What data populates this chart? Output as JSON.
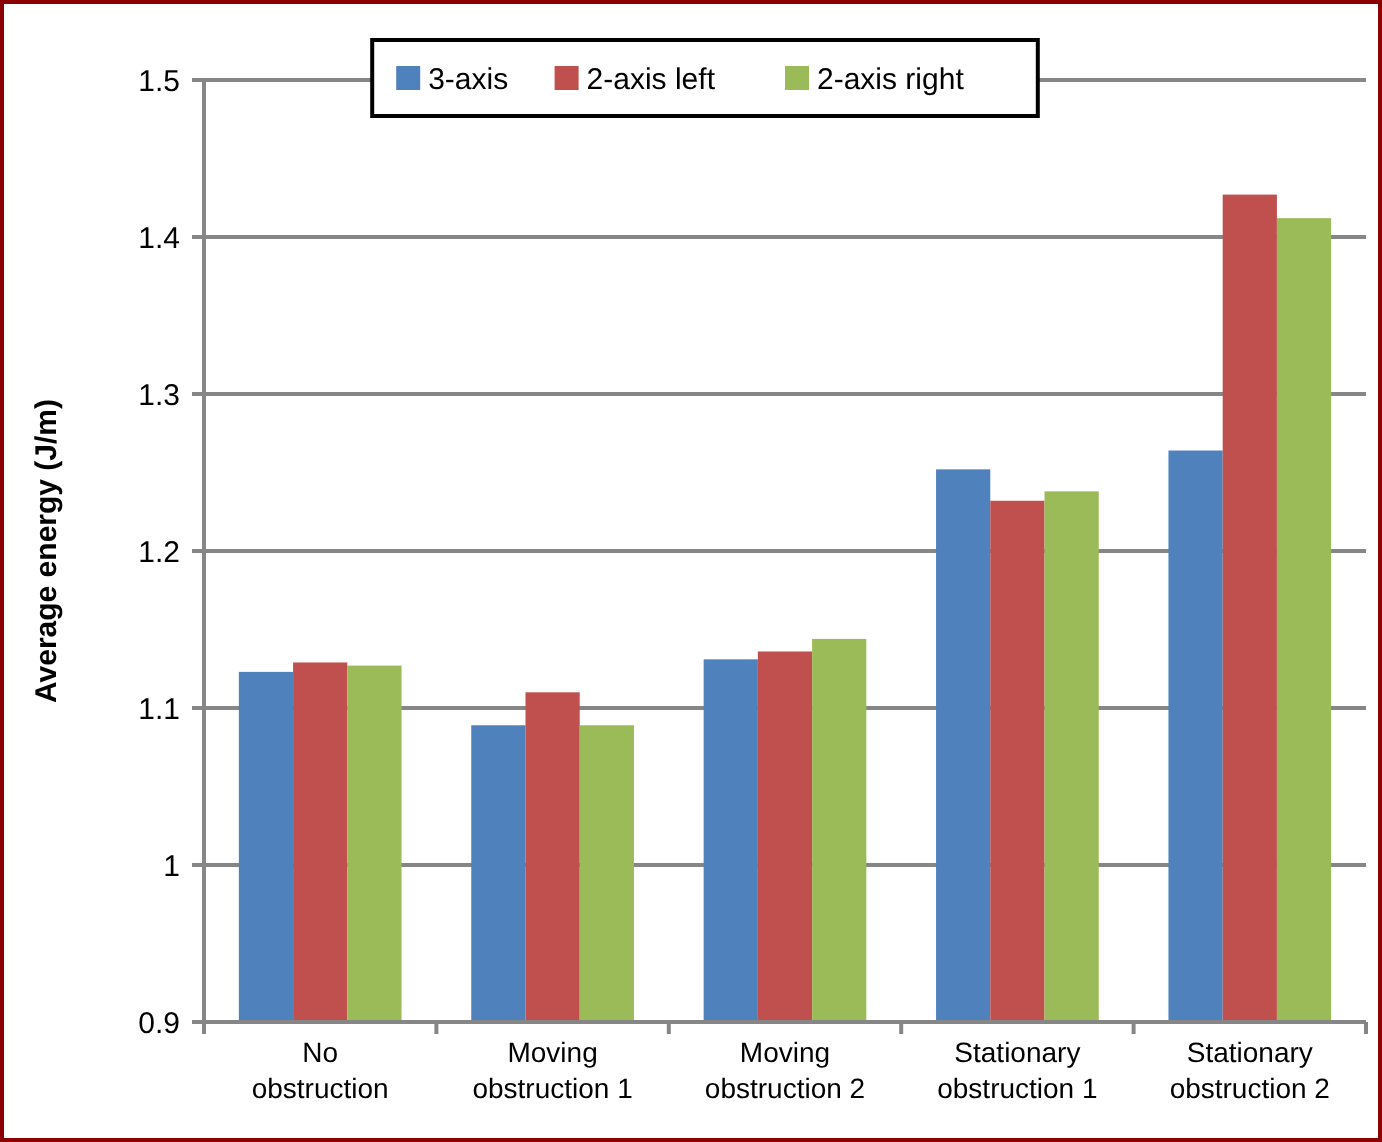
{
  "chart_data": {
    "type": "bar",
    "ylabel": "Average energy (J/m)",
    "categories": [
      "No obstruction",
      "Moving obstruction 1",
      "Moving obstruction 2",
      "Stationary obstruction 1",
      "Stationary obstruction 2"
    ],
    "series": [
      {
        "name": "3-axis",
        "color": "#4f81bd",
        "values": [
          1.123,
          1.089,
          1.131,
          1.252,
          1.264
        ]
      },
      {
        "name": "2-axis left",
        "color": "#c0504d",
        "values": [
          1.129,
          1.11,
          1.136,
          1.232,
          1.427
        ]
      },
      {
        "name": "2-axis right",
        "color": "#9bbb59",
        "values": [
          1.127,
          1.089,
          1.144,
          1.238,
          1.412
        ]
      }
    ],
    "ylim": [
      0.9,
      1.5
    ],
    "yticks": [
      0.9,
      1,
      1.1,
      1.2,
      1.3,
      1.4,
      1.5
    ],
    "grid": "y",
    "legend": "top"
  }
}
